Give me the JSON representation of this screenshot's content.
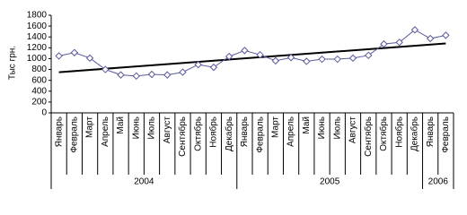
{
  "chart_data": {
    "type": "line",
    "y_label": "Тыс грн.",
    "groups": [
      {
        "name": "2004",
        "categories": [
          "Январь",
          "Февраль",
          "Март",
          "Апрель",
          "Май",
          "Июнь",
          "Июль",
          "Август",
          "Сентябрь",
          "Октябрь",
          "Ноябрь",
          "Декабрь"
        ]
      },
      {
        "name": "2005",
        "categories": [
          "Январь",
          "Февраль",
          "Март",
          "Апрель",
          "Май",
          "Июнь",
          "Июль",
          "Август",
          "Сентябрь",
          "Октябрь",
          "Ноябрь",
          "Декабрь"
        ]
      },
      {
        "name": "2006",
        "categories": [
          "Январь",
          "Февраль"
        ]
      }
    ],
    "values": [
      1050,
      1110,
      1010,
      800,
      700,
      680,
      710,
      700,
      750,
      890,
      840,
      1040,
      1150,
      1070,
      960,
      1020,
      950,
      990,
      990,
      1010,
      1060,
      1270,
      1300,
      1530,
      1370,
      1430
    ],
    "color": "#5a5a9c",
    "trendline": [
      750,
      1280
    ],
    "trend_color": "#000000",
    "ylim": [
      0,
      1800
    ],
    "yticks": [
      0,
      200,
      400,
      600,
      800,
      1000,
      1200,
      1400,
      1600,
      1800
    ]
  }
}
